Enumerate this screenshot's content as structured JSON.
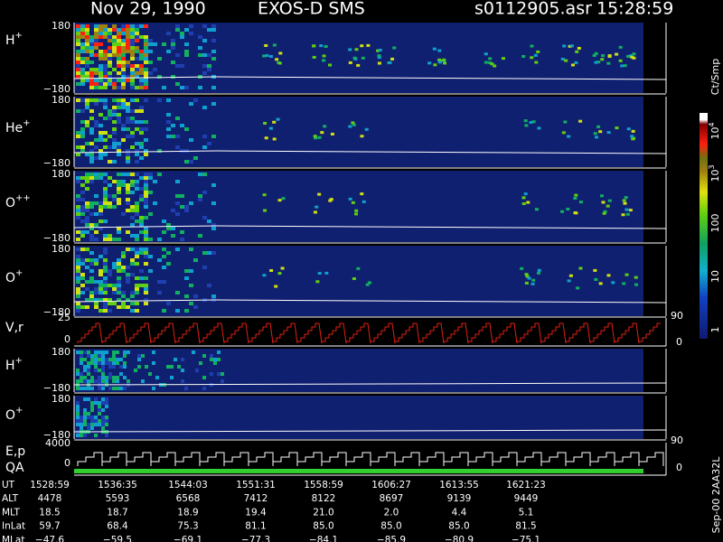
{
  "header": {
    "date": "Nov 29, 1990",
    "instrument": "EXOS-D SMS",
    "file": "s0112905.asr",
    "time": "15:28:59"
  },
  "panels": [
    {
      "label": "H",
      "sup": "+",
      "top": "180",
      "bottom": "−180"
    },
    {
      "label": "He",
      "sup": "+",
      "top": "180",
      "bottom": "−180"
    },
    {
      "label": "O",
      "sup": "++",
      "top": "180",
      "bottom": "−180"
    },
    {
      "label": "O",
      "sup": "+",
      "top": "180",
      "bottom": "−180"
    },
    {
      "label": "H",
      "sup": "+",
      "top": "180",
      "bottom": "−180"
    },
    {
      "label": "O",
      "sup": "+",
      "top": "180",
      "bottom": "−180"
    }
  ],
  "vr": {
    "label": "V,r",
    "top": "25",
    "zero": "0",
    "right_top": "90",
    "right_bottom": "0"
  },
  "ep": {
    "label": "E,p",
    "label2": "QA",
    "top": "4000",
    "zero": "0",
    "right_top": "90",
    "right_bottom": "0"
  },
  "colorbar": {
    "unit": "Ct/Smp",
    "labels": [
      {
        "base": "10",
        "exp": "4"
      },
      {
        "base": "10",
        "exp": "3"
      },
      {
        "base": "100"
      },
      {
        "base": "10"
      },
      {
        "base": "1"
      }
    ]
  },
  "table": {
    "rows": [
      [
        "UT",
        "1528:59",
        "1536:35",
        "1544:03",
        "1551:31",
        "1558:59",
        "1606:27",
        "1613:55",
        "1621:23"
      ],
      [
        "ALT",
        "4478",
        "5593",
        "6568",
        "7412",
        "8122",
        "8697",
        "9139",
        "9449"
      ],
      [
        "MLT",
        "18.5",
        "18.7",
        "18.9",
        "19.4",
        "21.0",
        "2.0",
        "4.4",
        "5.1"
      ],
      [
        "InLat",
        "59.7",
        "68.4",
        "75.3",
        "81.1",
        "85.0",
        "85.0",
        "85.0",
        "81.5"
      ],
      [
        "MLat",
        "−47.6",
        "−59.5",
        "−69.1",
        "−77.3",
        "−84.1",
        "−85.9",
        "−80.9",
        "−75.1"
      ]
    ]
  },
  "footer_note": "Sep-00 2AA32L"
}
